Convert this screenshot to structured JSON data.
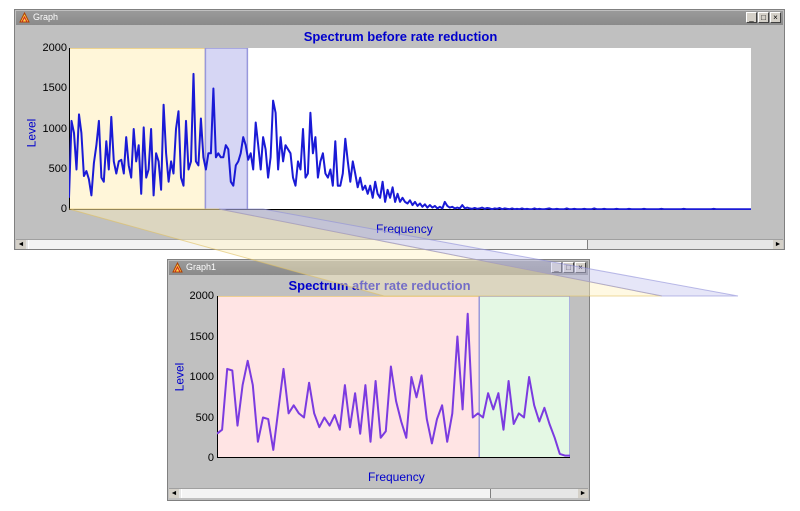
{
  "colors": {
    "series_line": "#1a1ad6",
    "series_line_after": "#7b3be0",
    "title_text": "#0000cc",
    "highlight_yellow": "#fff6d9",
    "highlight_blue": "#d6d6f4",
    "highlight_pink": "#ffe4e4",
    "highlight_green": "#e4f8e4"
  },
  "window_top": {
    "title": "Graph",
    "chart_title": "Spectrum before rate reduction",
    "y_label": "Level",
    "x_label": "Frequency",
    "y_ticks": [
      "2000",
      "1500",
      "1000",
      "500",
      "0"
    ],
    "buttons": {
      "minimize": "_",
      "maximize": "□",
      "close": "×"
    },
    "scroll_left": "◄",
    "scroll_right": "►"
  },
  "window_bottom": {
    "title": "Graph1",
    "chart_title": "Spectrum after rate reduction",
    "y_label": "Level",
    "x_label": "Frequency",
    "y_ticks": [
      "2000",
      "1500",
      "1000",
      "500",
      "0"
    ],
    "buttons": {
      "minimize": "_",
      "maximize": "□",
      "close": "×"
    },
    "scroll_left": "◄",
    "scroll_right": "►"
  },
  "chart_data": [
    {
      "type": "line",
      "title": "Spectrum before rate reduction",
      "xlabel": "Frequency",
      "ylabel": "Level",
      "ylim": [
        0,
        2000
      ],
      "x_range": [
        0,
        260
      ],
      "series": [
        {
          "name": "spectrum_before",
          "values": [
            150,
            1100,
            950,
            500,
            1180,
            950,
            420,
            480,
            380,
            180,
            580,
            800,
            1100,
            400,
            350,
            850,
            500,
            1150,
            600,
            450,
            600,
            620,
            450,
            900,
            550,
            400,
            1000,
            600,
            800,
            200,
            1020,
            400,
            500,
            1000,
            180,
            700,
            600,
            250,
            1300,
            700,
            350,
            600,
            450,
            1000,
            1220,
            400,
            300,
            1100,
            500,
            600,
            1680,
            600,
            550,
            1130,
            650,
            500,
            700,
            700,
            1500,
            650,
            700,
            650,
            650,
            800,
            750,
            350,
            300,
            550,
            600,
            700,
            900,
            800,
            620,
            700,
            500,
            1080,
            800,
            500,
            900,
            750,
            400,
            650,
            1350,
            1200,
            500,
            900,
            600,
            800,
            750,
            700,
            400,
            300,
            600,
            500,
            1000,
            400,
            450,
            1200,
            700,
            900,
            400,
            600,
            700,
            450,
            400,
            500,
            300,
            850,
            300,
            300,
            450,
            880,
            600,
            350,
            600,
            450,
            280,
            400,
            250,
            300,
            200,
            300,
            150,
            350,
            200,
            150,
            350,
            100,
            250,
            150,
            280,
            100,
            200,
            100,
            150,
            100,
            80,
            120,
            60,
            100,
            50,
            80,
            40,
            70,
            30,
            60,
            30,
            50,
            20,
            40,
            20,
            100,
            50,
            30,
            40,
            20,
            30,
            20,
            60,
            20,
            30,
            20,
            15,
            25,
            15,
            20,
            30,
            15,
            25,
            20,
            10,
            20,
            15,
            25,
            10,
            20,
            15,
            10,
            20,
            10,
            15,
            10,
            20,
            10,
            15,
            10,
            10,
            20,
            10,
            15,
            10,
            10,
            15,
            20,
            10,
            10,
            15,
            10,
            10,
            10,
            20,
            10,
            10,
            15,
            10,
            10,
            10,
            15,
            10,
            10,
            10,
            20,
            10,
            10,
            10,
            15,
            10,
            10,
            10,
            10,
            15,
            10,
            10,
            10,
            10,
            15,
            10,
            10,
            10,
            10,
            10,
            15,
            10,
            10,
            10,
            10,
            10,
            10,
            15,
            10,
            10,
            10,
            10,
            10,
            10,
            10,
            10,
            15,
            10,
            10,
            10,
            10,
            10,
            10,
            10,
            10,
            10,
            10,
            10,
            15,
            10,
            10,
            10,
            10,
            10,
            10,
            10,
            10,
            10,
            10,
            10,
            10,
            10,
            10,
            10
          ]
        }
      ],
      "highlight_ranges": [
        {
          "name": "retained_band",
          "x": [
            0,
            52
          ]
        },
        {
          "name": "folded_band",
          "x": [
            52,
            68
          ]
        }
      ]
    },
    {
      "type": "line",
      "title": "Spectrum after rate reduction",
      "xlabel": "Frequency",
      "ylabel": "Level",
      "ylim": [
        0,
        2000
      ],
      "x_range": [
        0,
        70
      ],
      "series": [
        {
          "name": "spectrum_after",
          "values": [
            300,
            350,
            1100,
            1080,
            400,
            900,
            1200,
            900,
            200,
            500,
            480,
            100,
            600,
            1100,
            550,
            650,
            550,
            500,
            930,
            550,
            380,
            500,
            400,
            530,
            350,
            900,
            380,
            800,
            300,
            900,
            200,
            950,
            250,
            330,
            1130,
            700,
            450,
            250,
            1000,
            750,
            1020,
            480,
            180,
            480,
            650,
            200,
            550,
            1500,
            600,
            1780,
            500,
            550,
            500,
            800,
            600,
            800,
            350,
            950,
            420,
            550,
            500,
            1000,
            650,
            450,
            620,
            420,
            250,
            50,
            30,
            30
          ]
        }
      ],
      "highlight_ranges": [
        {
          "name": "retained_band",
          "x": [
            0,
            52
          ]
        },
        {
          "name": "folded_band",
          "x": [
            52,
            70
          ]
        }
      ]
    }
  ]
}
